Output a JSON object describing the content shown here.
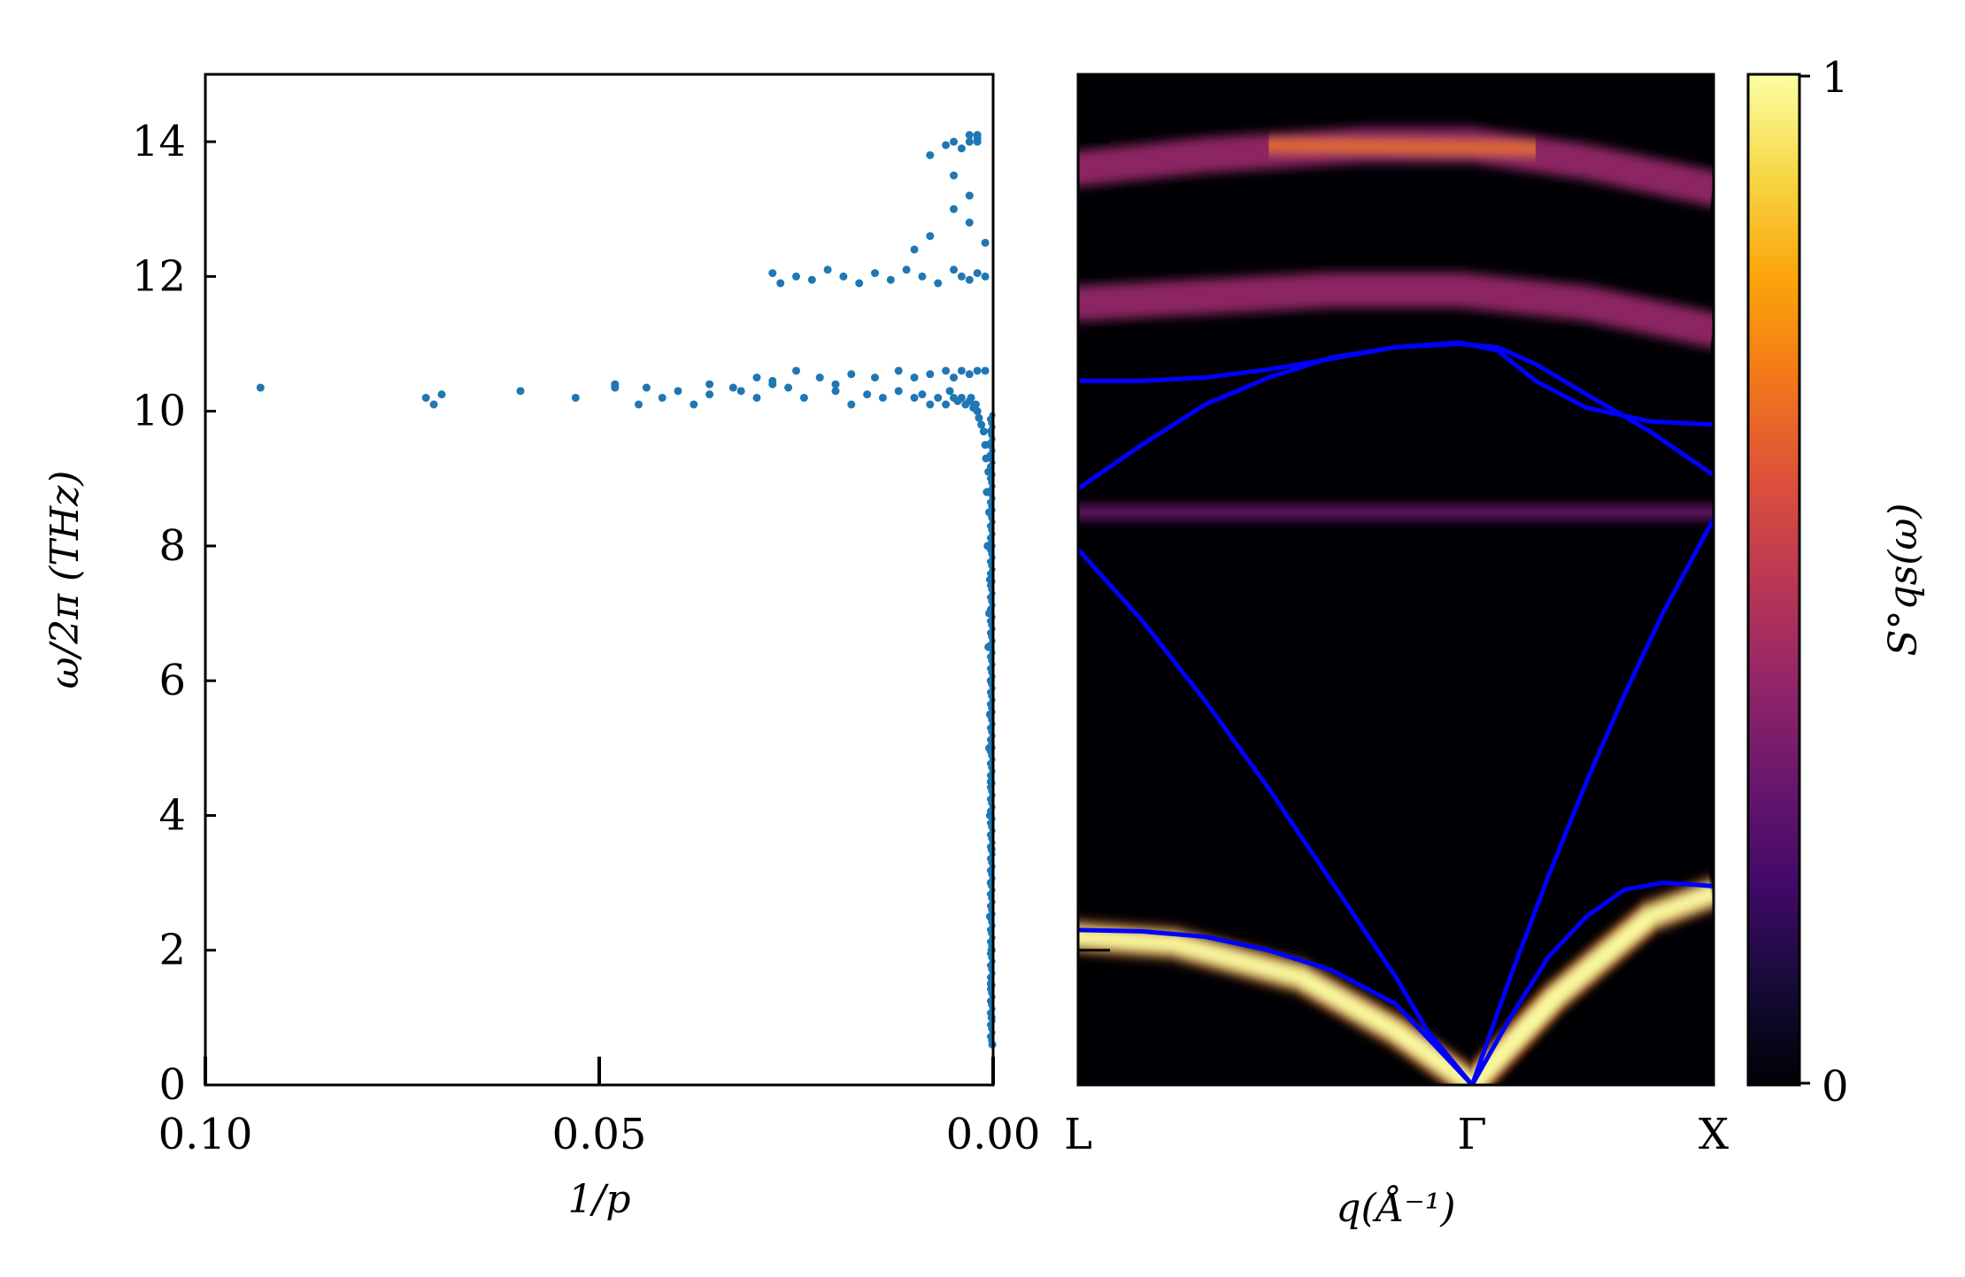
{
  "chart_data": [
    {
      "type": "scatter",
      "xlabel": "1/p",
      "ylabel": "ω/2π (THz)",
      "xlim": [
        0.1,
        0.0
      ],
      "ylim": [
        0,
        15
      ],
      "x_ticks": [
        "0.10",
        "0.05",
        "0.00"
      ],
      "y_ticks": [
        "0",
        "2",
        "4",
        "6",
        "8",
        "10",
        "12",
        "14"
      ],
      "marker_color": "#1f77b4",
      "series": [
        {
          "x": [
            0.0001,
            0.0002,
            0.0003,
            0.0002,
            0.0004,
            0.0003,
            0.0002,
            0.0004,
            0.0003,
            0.0005,
            0.0004,
            0.0003,
            0.0006,
            0.0005,
            0.0004,
            0.0007,
            0.0005,
            0.0008,
            0.0006,
            0.0009,
            0.001,
            0.0012,
            0.0015,
            0.0018,
            0.002,
            0.0025,
            0.0022,
            0.003,
            0.0028,
            0.0035,
            0.004,
            0.0045,
            0.005,
            0.006,
            0.0055,
            0.007,
            0.008,
            0.009,
            0.01,
            0.012,
            0.014,
            0.016,
            0.018,
            0.02,
            0.024,
            0.026,
            0.028,
            0.03,
            0.032,
            0.036,
            0.038,
            0.042,
            0.045,
            0.048,
            0.001,
            0.002,
            0.003,
            0.004,
            0.005,
            0.006,
            0.008,
            0.01,
            0.012,
            0.015,
            0.018,
            0.02,
            0.022,
            0.025,
            0.028,
            0.03,
            0.033,
            0.036,
            0.04,
            0.044,
            0.048,
            0.053,
            0.06,
            0.07,
            0.071,
            0.072,
            0.093,
            0.001,
            0.002,
            0.003,
            0.004,
            0.005,
            0.007,
            0.009,
            0.011,
            0.013,
            0.015,
            0.017,
            0.019,
            0.021,
            0.023,
            0.025,
            0.027,
            0.028,
            0.001,
            0.003,
            0.005,
            0.008,
            0.01,
            0.003,
            0.005,
            0.008,
            0.002,
            0.004,
            0.002,
            0.003,
            0.005,
            0.006,
            0.002,
            0.003
          ],
          "y": [
            0.6,
            1.0,
            1.5,
            2.0,
            2.5,
            3.0,
            3.5,
            4.0,
            4.5,
            5.0,
            5.5,
            6.0,
            6.5,
            7.0,
            7.5,
            8.0,
            8.5,
            8.8,
            9.1,
            9.3,
            9.5,
            9.7,
            9.8,
            9.9,
            10.0,
            10.05,
            10.1,
            10.15,
            10.2,
            10.1,
            10.2,
            10.15,
            10.2,
            10.1,
            10.3,
            10.2,
            10.1,
            10.25,
            10.2,
            10.3,
            10.2,
            10.25,
            10.1,
            10.3,
            10.2,
            10.35,
            10.4,
            10.2,
            10.3,
            10.25,
            10.1,
            10.2,
            10.1,
            10.35,
            10.6,
            10.6,
            10.55,
            10.6,
            10.5,
            10.6,
            10.55,
            10.5,
            10.6,
            10.5,
            10.55,
            10.4,
            10.5,
            10.6,
            10.45,
            10.5,
            10.35,
            10.4,
            10.3,
            10.35,
            10.4,
            10.2,
            10.3,
            10.25,
            10.1,
            10.2,
            10.35,
            12.0,
            12.05,
            11.95,
            12.0,
            12.1,
            11.9,
            12.0,
            12.1,
            11.95,
            12.05,
            11.9,
            12.0,
            12.1,
            11.95,
            12.0,
            11.9,
            12.05,
            12.5,
            12.8,
            13.0,
            12.6,
            12.4,
            13.2,
            13.5,
            13.8,
            14.0,
            13.9,
            14.05,
            14.1,
            14.0,
            13.95,
            14.1,
            14.0
          ]
        }
      ]
    },
    {
      "type": "heatmap",
      "xlabel": "q(Å⁻¹)",
      "x_ticks": [
        "L",
        "Γ",
        "X"
      ],
      "ylim": [
        0,
        15
      ],
      "colormap": "inferno",
      "colorbar": {
        "label": "S°qs(ω)",
        "ticks": [
          "0",
          "1"
        ],
        "range": [
          0,
          1
        ]
      },
      "bands_color": "#0000ff",
      "heatmap_bands": [
        {
          "name": "acoustic_low",
          "y": [
            2.2,
            2.1,
            1.6,
            0.8,
            0.0,
            1.3,
            2.5,
            2.85
          ],
          "q": [
            0,
            0.15,
            0.35,
            0.5,
            0.62,
            0.75,
            0.9,
            1.0
          ]
        },
        {
          "name": "band_8.5",
          "y": [
            8.5,
            8.5,
            8.5,
            8.5,
            8.5
          ],
          "q": [
            0,
            0.25,
            0.5,
            0.75,
            1.0
          ]
        },
        {
          "name": "band_11.5",
          "y": [
            11.6,
            11.7,
            11.8,
            11.8,
            11.6,
            11.2
          ],
          "q": [
            0,
            0.2,
            0.4,
            0.6,
            0.8,
            1.0
          ]
        },
        {
          "name": "band_14",
          "y": [
            13.6,
            13.8,
            13.95,
            13.95,
            13.7,
            13.3
          ],
          "q": [
            0,
            0.2,
            0.45,
            0.62,
            0.8,
            1.0
          ]
        }
      ],
      "dispersion_lines": [
        {
          "q": [
            0,
            0.1,
            0.2,
            0.3,
            0.4,
            0.5,
            0.55,
            0.62
          ],
          "y": [
            2.3,
            2.28,
            2.2,
            2.0,
            1.7,
            1.2,
            0.7,
            0.0
          ]
        },
        {
          "q": [
            0,
            0.1,
            0.2,
            0.3,
            0.4,
            0.5,
            0.55,
            0.62
          ],
          "y": [
            7.95,
            6.9,
            5.7,
            4.4,
            3.0,
            1.6,
            0.8,
            0.0
          ]
        },
        {
          "q": [
            0.62,
            0.68,
            0.74,
            0.8,
            0.86,
            0.92,
            0.96,
            1.0
          ],
          "y": [
            0.0,
            1.0,
            1.9,
            2.5,
            2.9,
            3.0,
            2.98,
            2.95
          ]
        },
        {
          "q": [
            0.62,
            0.68,
            0.74,
            0.8,
            0.86,
            0.92,
            0.96,
            1.0
          ],
          "y": [
            0.0,
            1.6,
            3.1,
            4.5,
            5.8,
            7.0,
            7.7,
            8.4
          ]
        },
        {
          "q": [
            0,
            0.1,
            0.2,
            0.3,
            0.4,
            0.5,
            0.6,
            0.66,
            0.72,
            0.8,
            0.9,
            1.0
          ],
          "y": [
            8.85,
            9.5,
            10.1,
            10.5,
            10.8,
            10.95,
            11.0,
            10.95,
            10.7,
            10.25,
            9.7,
            9.05
          ]
        },
        {
          "q": [
            0,
            0.1,
            0.2,
            0.3,
            0.4,
            0.5,
            0.6,
            0.66,
            0.72,
            0.8,
            0.9,
            1.0
          ],
          "y": [
            10.45,
            10.45,
            10.5,
            10.62,
            10.78,
            10.95,
            11.02,
            10.9,
            10.45,
            10.05,
            9.85,
            9.8
          ]
        }
      ]
    }
  ]
}
